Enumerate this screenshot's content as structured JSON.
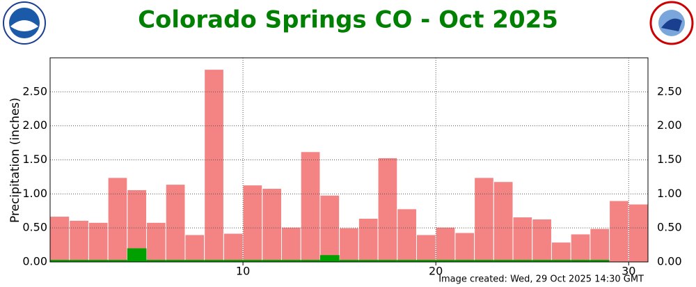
{
  "chart_data": {
    "type": "bar",
    "title": "Colorado Springs CO - Oct 2025",
    "y_label": "Precipitation (inches)",
    "footer": "Image created: Wed, 29 Oct 2025 14:30 GMT",
    "x": [
      1,
      2,
      3,
      4,
      5,
      6,
      7,
      8,
      9,
      10,
      11,
      12,
      13,
      14,
      15,
      16,
      17,
      18,
      19,
      20,
      21,
      22,
      23,
      24,
      25,
      26,
      27,
      28,
      29,
      30,
      31
    ],
    "series": [
      {
        "color": "#f48383",
        "values": [
          0.67,
          0.61,
          0.58,
          1.24,
          1.06,
          0.58,
          1.14,
          0.4,
          2.83,
          0.42,
          1.13,
          1.08,
          0.51,
          1.62,
          0.98,
          0.5,
          0.64,
          1.53,
          0.78,
          0.4,
          0.51,
          0.43,
          1.24,
          1.18,
          0.66,
          0.63,
          0.29,
          0.41,
          0.49,
          0.9,
          0.85
        ]
      },
      {
        "color": "#00a000",
        "values": [
          0.03,
          0.03,
          0.03,
          0.03,
          0.2,
          0.03,
          0.03,
          0.03,
          0.03,
          0.03,
          0.03,
          0.03,
          0.03,
          0.03,
          0.1,
          0.03,
          0.03,
          0.03,
          0.03,
          0.03,
          0.03,
          0.03,
          0.03,
          0.03,
          0.03,
          0.03,
          0.03,
          0.03,
          0.03,
          null,
          null
        ]
      }
    ],
    "xlim": [
      0,
      31
    ],
    "xticks": [
      10,
      20,
      30
    ],
    "ylim": [
      0,
      3.0
    ],
    "yticks": [
      {
        "value": 0,
        "label": "0.00"
      },
      {
        "value": 0.5,
        "label": "0.50"
      },
      {
        "value": 1,
        "label": "1.00"
      },
      {
        "value": 1.5,
        "label": "1.50"
      },
      {
        "value": 2,
        "label": "2.00"
      },
      {
        "value": 2.5,
        "label": "2.50"
      }
    ],
    "grid": true
  }
}
